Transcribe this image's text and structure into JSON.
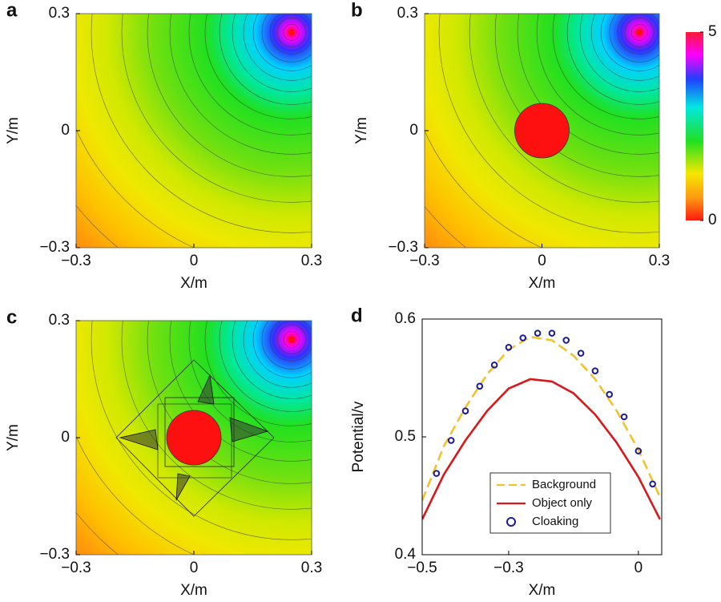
{
  "chart_data": [
    {
      "type": "field",
      "panel": "a",
      "xlabel": "X/m",
      "ylabel": "Y/m",
      "xlim": [
        -0.3,
        0.3
      ],
      "ylim": [
        -0.3,
        0.3
      ],
      "xticks": [
        {
          "value": -0.3,
          "label": "−0.3"
        },
        0,
        0.3
      ],
      "yticks": [
        {
          "value": -0.3,
          "label": "−0.3"
        },
        0,
        0.3
      ]
    },
    {
      "type": "field",
      "panel": "b",
      "xlabel": "X/m",
      "ylabel": "Y/m",
      "xlim": [
        -0.3,
        0.3
      ],
      "ylim": [
        -0.3,
        0.3
      ],
      "xticks": [
        {
          "value": -0.3,
          "label": "−0.3"
        },
        0,
        0.3
      ],
      "yticks": [
        {
          "value": -0.3,
          "label": "−0.3"
        },
        0,
        0.3
      ],
      "colorbar": {
        "lim": [
          0,
          5
        ],
        "ticks": [
          0,
          5
        ]
      }
    },
    {
      "type": "field",
      "panel": "c",
      "xlabel": "X/m",
      "ylabel": "Y/m",
      "xlim": [
        -0.3,
        0.3
      ],
      "ylim": [
        -0.3,
        0.3
      ],
      "xticks": [
        {
          "value": -0.3,
          "label": "−0.3"
        },
        0,
        0.3
      ],
      "yticks": [
        {
          "value": -0.3,
          "label": "−0.3"
        },
        0,
        0.3
      ]
    },
    {
      "type": "line",
      "panel": "d",
      "xlabel": "X/m",
      "ylabel": "Potential/v",
      "xlim": [
        -0.5,
        0.054
      ],
      "ylim": [
        0.4,
        0.6
      ],
      "xticks": [
        {
          "value": -0.5,
          "label": "−0.5"
        },
        {
          "value": -0.3,
          "label": "−0.3"
        },
        0
      ],
      "yticks": [
        0.4,
        0.5,
        0.6
      ],
      "series": [
        {
          "name": "Background",
          "color": "#f2c12e",
          "style": "dashed",
          "x": [
            -0.5,
            -0.45,
            -0.4,
            -0.35,
            -0.3,
            -0.25,
            -0.2,
            -0.15,
            -0.1,
            -0.05,
            0,
            0.05
          ],
          "values": [
            0.446,
            0.492,
            0.525,
            0.553,
            0.574,
            0.585,
            0.582,
            0.569,
            0.549,
            0.522,
            0.489,
            0.449
          ]
        },
        {
          "name": "Object only",
          "color": "#d7191c",
          "style": "solid",
          "x": [
            -0.5,
            -0.45,
            -0.4,
            -0.35,
            -0.3,
            -0.25,
            -0.2,
            -0.15,
            -0.1,
            -0.05,
            0,
            0.05
          ],
          "values": [
            0.43,
            0.468,
            0.497,
            0.522,
            0.541,
            0.549,
            0.547,
            0.537,
            0.519,
            0.495,
            0.466,
            0.43
          ]
        },
        {
          "name": "Cloaking",
          "color": "#1a1a9a",
          "style": "markers",
          "x": [
            -0.467,
            -0.433,
            -0.4,
            -0.367,
            -0.333,
            -0.3,
            -0.267,
            -0.233,
            -0.2,
            -0.167,
            -0.133,
            -0.1,
            -0.067,
            -0.033,
            0,
            0.033
          ],
          "values": [
            0.469,
            0.497,
            0.522,
            0.543,
            0.561,
            0.576,
            0.584,
            0.588,
            0.588,
            0.582,
            0.571,
            0.556,
            0.536,
            0.517,
            0.488,
            0.46
          ]
        }
      ]
    }
  ]
}
